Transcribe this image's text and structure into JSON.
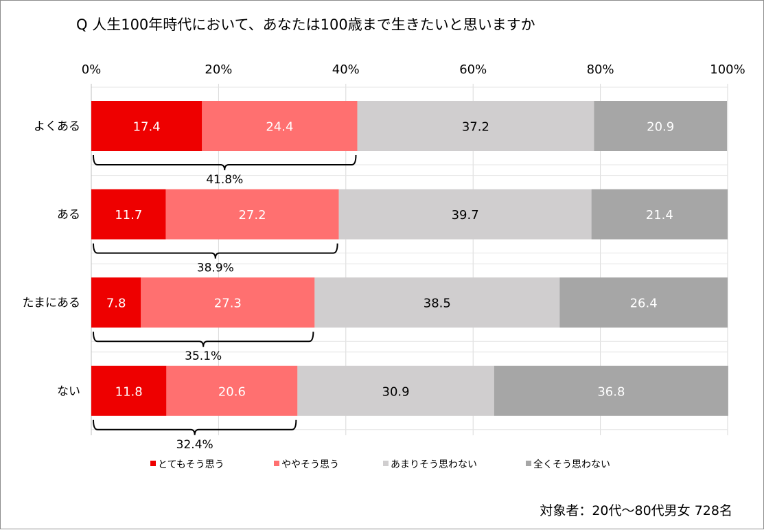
{
  "chart_data": {
    "type": "bar",
    "orientation": "horizontal",
    "stacked": true,
    "title": "Q 人生100年時代において、あなたは100歳まで生きたいと思いますか",
    "x_ticks": [
      "0%",
      "20%",
      "40%",
      "60%",
      "80%",
      "100%"
    ],
    "xlim": [
      0,
      100
    ],
    "categories": [
      "よくある",
      "ある",
      "たまにある",
      "ない"
    ],
    "series": [
      {
        "name": "とてもそう思う",
        "color": "#ee0000",
        "label_color": "#ffffff",
        "values": [
          17.4,
          11.7,
          7.8,
          11.8
        ]
      },
      {
        "name": "ややそう思う",
        "color": "#ff7070",
        "label_color": "#ffffff",
        "values": [
          24.4,
          27.2,
          27.3,
          20.6
        ]
      },
      {
        "name": "あまりそう思わない",
        "color": "#d0cecf",
        "label_color": "#000000",
        "values": [
          37.2,
          39.7,
          38.5,
          30.9
        ]
      },
      {
        "name": "全くそう思わない",
        "color": "#a6a6a6",
        "label_color": "#ffffff",
        "values": [
          20.9,
          21.4,
          26.4,
          36.8
        ]
      }
    ],
    "value_labels": [
      [
        "17.4",
        "24.4",
        "37.2",
        "20.9"
      ],
      [
        "11.7",
        "27.2",
        "39.7",
        "21.4"
      ],
      [
        "7.8",
        "27.3",
        "38.5",
        "26.4"
      ],
      [
        "11.8",
        "20.6",
        "30.9",
        "36.8"
      ]
    ],
    "bracket_totals": [
      41.8,
      38.9,
      35.1,
      32.4
    ],
    "bracket_labels": [
      "41.8%",
      "38.9%",
      "35.1%",
      "32.4%"
    ],
    "grid": true,
    "legend_position": "bottom",
    "footnote": "対象者：20代～80代男女 728名"
  }
}
